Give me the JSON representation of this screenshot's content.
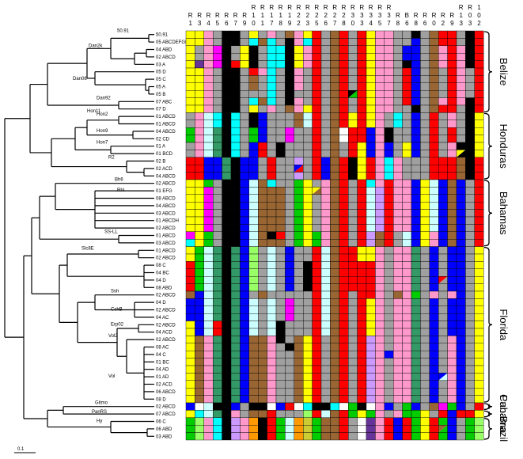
{
  "columns": [
    {
      "l1": "",
      "l2": "R",
      "l3": "1"
    },
    {
      "l1": "",
      "l2": "R",
      "l3": "3"
    },
    {
      "l1": "",
      "l2": "R",
      "l3": "4"
    },
    {
      "l1": "",
      "l2": "R",
      "l3": "5"
    },
    {
      "l1": "",
      "l2": "R",
      "l3": "6"
    },
    {
      "l1": "",
      "l2": "R",
      "l3": "7"
    },
    {
      "l1": "",
      "l2": "R",
      "l3": "9"
    },
    {
      "l1": "R",
      "l2": "1",
      "l3": "0"
    },
    {
      "l1": "R",
      "l2": "1",
      "l3": "1"
    },
    {
      "l1": "R",
      "l2": "1",
      "l3": "7"
    },
    {
      "l1": "R",
      "l2": "1",
      "l3": "8"
    },
    {
      "l1": "R",
      "l2": "1",
      "l3": "9"
    },
    {
      "l1": "R",
      "l2": "2",
      "l3": "2"
    },
    {
      "l1": "R",
      "l2": "2",
      "l3": "3"
    },
    {
      "l1": "R",
      "l2": "2",
      "l3": "5"
    },
    {
      "l1": "R",
      "l2": "2",
      "l3": "6"
    },
    {
      "l1": "R",
      "l2": "2",
      "l3": "7"
    },
    {
      "l1": "R",
      "l2": "2",
      "l3": "8"
    },
    {
      "l1": "R",
      "l2": "3",
      "l3": "0"
    },
    {
      "l1": "R",
      "l2": "3",
      "l3": "3"
    },
    {
      "l1": "R",
      "l2": "3",
      "l3": "4"
    },
    {
      "l1": "R",
      "l2": "3",
      "l3": "5"
    },
    {
      "l1": "R",
      "l2": "3",
      "l3": "7"
    },
    {
      "l1": "",
      "l2": "R",
      "l3": "8"
    },
    {
      "l1": "",
      "l2": "B",
      "l3": "6"
    },
    {
      "l1": "",
      "l2": "R",
      "l3": "8"
    },
    {
      "l1": "",
      "l2": "R",
      "l3": "6"
    },
    {
      "l1": "",
      "l2": "R",
      "l3": "0"
    },
    {
      "l1": "",
      "l2": "R",
      "l3": "2"
    },
    {
      "l1": "",
      "l2": "R",
      "l3": "9"
    },
    {
      "l1": "R",
      "l2": "1",
      "l3": "3"
    },
    {
      "l1": "R",
      "l2": "0",
      "l3": "3"
    },
    {
      "l1": "1",
      "l2": "0",
      "l3": "2"
    }
  ],
  "palette": {
    "Y": "#ffff00",
    "B": "#000000",
    "G": "#00cc00",
    "g": "#339966",
    "N": "#0000ff",
    "R": "#ff0000",
    "W": "#ffffff",
    "K": "#a0a0a0",
    "P": "#ff99cc",
    "C": "#00ffff",
    "c": "#ccffff",
    "D": "#996633",
    "M": "#ff00ff",
    "L": "#99ff66",
    "O": "#ff9900",
    "S": "#cc99ff",
    "T": "#663399",
    "A": "#cccc33",
    "t": "#00cccc"
  },
  "rows": [
    {
      "label": "50.91",
      "cells": "YYPKBBKYKPKDPYRKDRKRYPPKKBKDRRKBR"
    },
    {
      "label": "05 ABCDEFGH",
      "cells": "YYPKBBKCDCKBPCRKDRKRYPPKKNKDRRKBR"
    },
    {
      "label": "04 ABD",
      "cells": "YKPMBKYBKCCBYPRKDRKRYPPKNNKDPRPBR"
    },
    {
      "label": "02 ABCD",
      "cells": "YKPMBKYBKCCBYPRKDRKRYPPKNNKDPRPBR"
    },
    {
      "label": "03 A",
      "cells": "YTPMBRYBKCCBYPRKDRKRYPPKBNKDPRPBR"
    },
    {
      "label": "05 D",
      "cells": "YYPKBBKRPCKBPKRKDRKRYPPKRNKDKRPKR"
    },
    {
      "label": "05 C",
      "cells": "YYPKBBKDKCKBPKRKDRKRYPPKRNKDKRPKR"
    },
    {
      "label": "05 A",
      "cells": "YYPKBBKDKCKBPKRKDRKRYPPKRNKDKRPKR"
    },
    {
      "label": "05 B",
      "cells": "YYPKBBKKKCKBKKRKDRKRYPPKRNKDKRPKR"
    },
    {
      "label": "07 ABC",
      "cells": "YYPKBBKCDCKBPKRKDRKRYPPKRNKDPRPBR"
    },
    {
      "label": "07 D",
      "cells": "YYPKBBKYKPKDPYRKDRKRYPPKKBKDRRKBR"
    },
    {
      "label": "01 ABCD",
      "cells": "KPcCBCKBNKKKDcRKDRYRYPKCKNKRKPKBY"
    },
    {
      "label": "01 ABCD",
      "cells": "KPcCBCKBNKKKDcRKDRYRYPKCKNKRKPKBY"
    },
    {
      "label": "04 ABCD",
      "cells": "GPcgBCKGNKKMKKRKDWRRNPBKKNKRKRKBY"
    },
    {
      "label": "02 CD",
      "cells": "GPcgBCKGNKKMKKRKDWRRNPBKKNKRKRKBY"
    },
    {
      "label": "01 A",
      "cells": "KPcgBCKNRKBKKKRKDKRYNPNKYNKRKPBBY"
    },
    {
      "label": "01 BCD",
      "cells": "KPcgBCKNRKBKKKRKDKRYNPNKYNKRKPBBY"
    },
    {
      "label": "02 B",
      "cells": "RRNNgBNNKRKKSKRNDRBYRPCPKKKRRRDBR"
    },
    {
      "label": "02 ACD",
      "cells": "RRNNgBNNKRKKSKRNDRBYRPCPKKKRRRDBR"
    },
    {
      "label": "04 ABCD",
      "cells": "RRNNgBNNKRKKSKRNDRBYRPCPKKKRRRDBR"
    },
    {
      "label": "02 ABCD",
      "cells": "YYGKBBNcDCKKGYKPDRKRCPRPPNYcNDNKR"
    },
    {
      "label": "01 EFG",
      "cells": "YYMKBBNcDDDKGYKPDRKRcSRPPNYcNDNKR"
    },
    {
      "label": "08 ABCD",
      "cells": "YYMKBBNcDDDKGYKPDRKRcSRPPNYcNDNKR"
    },
    {
      "label": "04 ABCD",
      "cells": "YYMKBBNcDDDKGYKPDRKRcSRPPNYcNDNKR"
    },
    {
      "label": "03 ABCD",
      "cells": "YYMKBBNcDDDKGYKPDRKRcSRPPNYcNDNKR"
    },
    {
      "label": "01 ABCDH",
      "cells": "YYMKBBNcDDDKGYKPDRKRcSRPPNYcNDNKR"
    },
    {
      "label": "02 ABCD",
      "cells": "YYMKBBNcDDDKGYKPDRKRcSRPPNYcNDNKR"
    },
    {
      "label": "01 ABCD",
      "cells": "MYGKBBNcDBRKGYGPDRKRSDRKcNYPNDNKR"
    },
    {
      "label": "03 ABCD",
      "cells": "CYGKBBNcDDDKGYGPDRKRSDRKcNYPNDNKR"
    },
    {
      "label": "01 ABCD",
      "cells": "YGcgBgNLKcKNKKRcDRRYYPKPPgKNKNNKY"
    },
    {
      "label": "02 ABCD",
      "cells": "YGcgBgNLKcKNKKRcDRRYYPKPPgKNKNNKY"
    },
    {
      "label": "08 C",
      "cells": "RGcgBgNLKcKNKBRcDRRRRPKPPgKNKNNKY"
    },
    {
      "label": "04 BC",
      "cells": "RGcgBgNLKcKNKBRcDRRRRPKPPgKNKNNKY"
    },
    {
      "label": "04 D",
      "cells": "RGcgBgNLKcKNKBRcDRRRRPKPPgKNKNNKY"
    },
    {
      "label": "08 ABD",
      "cells": "RGcgBgNLKcKNKBRcDRRRRPKPPgKNKNNKY"
    },
    {
      "label": "02 ABCD",
      "cells": "DNcgBgNKDKKKKKRcDRKRRPKDPGKPKPNKY"
    },
    {
      "label": "04 D",
      "cells": "NNcgBgNcKcKMKKRcDRKRYPKPPgKNKNNKY"
    },
    {
      "label": "02 ABCD",
      "cells": "NNcgBgNcKcKMKKRcDRKRYPKPPgKNKNNKY"
    },
    {
      "label": "04 AC",
      "cells": "NNcgBgNcKcKMKKRcDRKRYPKPPgKNKNNKY"
    },
    {
      "label": "02 ABCD",
      "cells": "YNcRBgNcKcBKKKRcDRKRYPKPPgKNKNNKY"
    },
    {
      "label": "04 ACD",
      "cells": "YNcRBgNcKcBKKKRcDRKRYPKPPgKNKNNKY"
    },
    {
      "label": "02 ABCD",
      "cells": "YDPgBgNDDPBKDYRKDRKRSPKPPgKNKPNKY"
    },
    {
      "label": "08 AC",
      "cells": "YDPgBgNDDPKBDYRKDRKRSPKPPgKNKPNKY"
    },
    {
      "label": "04 C",
      "cells": "YDPgBgNDDPKKDYRKDRKRSPNPPgKNKPNKY"
    },
    {
      "label": "01 BC",
      "cells": "YDPgBgNDDPKKDYRKDRKRSPKPPgKNKPNKY"
    },
    {
      "label": "04 AD",
      "cells": "YDPgBgNDDPKKDYRKDRKRSPKPPgKNKPNKY"
    },
    {
      "label": "01 AD",
      "cells": "YDPgBgNDDPKKDYRKDRKRSPKPPgKNKPNKY"
    },
    {
      "label": "02 ACD",
      "cells": "YDPgBgNDDPKKDYRKDRKRSPKPPgKNKPNKY"
    },
    {
      "label": "06 ABCD",
      "cells": "YDPgBgNDDPKKDYRKDRKRSPKPPgKNKPNKY"
    },
    {
      "label": "08 D",
      "cells": "YDPgBgNDDPKKDYRKDRKRSPKPPgKNKPNKY"
    },
    {
      "label": "02 ABCD",
      "cells": "NWcBBNKBBWNRWCBBCWGBWPNKGNKDMGNKR"
    },
    {
      "label": "07 ABCD",
      "cells": "YCcgBPKDDRKKKLRcDRGYGPKPGGYKRNRRY"
    },
    {
      "label": "06 C",
      "cells": "GLPCBSPOBRGcOAGDDRKWTPRNRGYRGNKGL"
    },
    {
      "label": "06 ABD",
      "cells": "GLPCBSPOBRGcOAGDDRKWTPRNRGYRGNKGL"
    },
    {
      "label": "03 ABD",
      "cells": "GLPCBSPOBRGcOAGDDRKWTPRNRGYRGNKGL"
    }
  ],
  "half_cells": [
    {
      "row": 18,
      "col": 12,
      "a": "N",
      "b": "R"
    },
    {
      "row": 21,
      "col": 14,
      "a": "Y",
      "b": "D"
    },
    {
      "row": 8,
      "col": 18,
      "a": "B",
      "b": "G"
    },
    {
      "row": 33,
      "col": 28,
      "a": "R",
      "b": "K"
    },
    {
      "row": 46,
      "col": 28,
      "a": "N",
      "b": "c"
    },
    {
      "row": 16,
      "col": 30,
      "a": "Y",
      "b": "B"
    },
    {
      "row": 53,
      "col": 28,
      "a": "D",
      "b": "G"
    }
  ],
  "clade_labels": [
    {
      "text": "50.91"
    },
    {
      "text": "Dan2k"
    },
    {
      "text": "Dan06"
    },
    {
      "text": "Dan92"
    },
    {
      "text": "Hon11"
    },
    {
      "text": "Hon2"
    },
    {
      "text": "Hon9"
    },
    {
      "text": "Hon7"
    },
    {
      "text": "R2"
    },
    {
      "text": "Bh6"
    },
    {
      "text": "Rhl"
    },
    {
      "text": "SS-LL"
    },
    {
      "text": "Slc8E"
    },
    {
      "text": "Ssh"
    },
    {
      "text": "CchB"
    },
    {
      "text": "Erp02"
    },
    {
      "text": "Vol2"
    },
    {
      "text": "Vol"
    },
    {
      "text": "Gitmo"
    },
    {
      "text": "PanRS"
    },
    {
      "text": "Hy"
    }
  ],
  "regions": [
    {
      "name": "Belize",
      "from": 0,
      "to": 10
    },
    {
      "name": "Honduras",
      "from": 11,
      "to": 19
    },
    {
      "name": "Bahamas",
      "from": 20,
      "to": 28
    },
    {
      "name": "Florida",
      "from": 29,
      "to": 49
    },
    {
      "name": "Cuba",
      "from": 50,
      "to": 50
    },
    {
      "name": "Panama",
      "from": 51,
      "to": 51
    },
    {
      "name": "Brazil",
      "from": 52,
      "to": 54
    }
  ],
  "scale_label": "0.1"
}
